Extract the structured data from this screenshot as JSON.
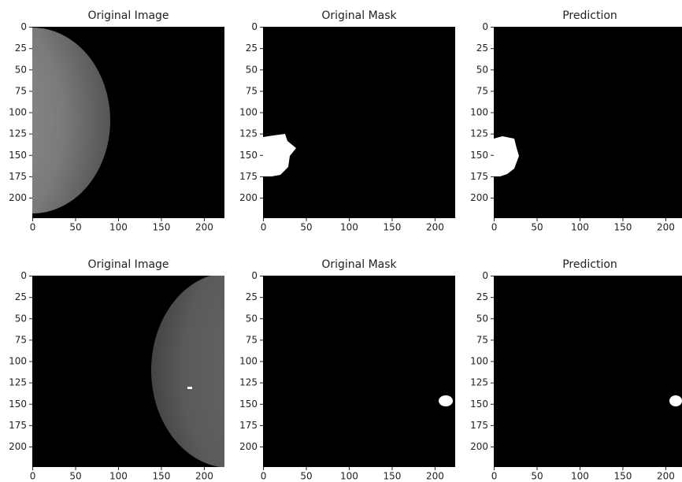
{
  "chart_data": [
    {
      "type": "image",
      "title": "Original Image",
      "xlim": [
        -0.5,
        223.5
      ],
      "ylim": [
        223.5,
        -0.5
      ],
      "xticks": [
        0,
        50,
        100,
        150,
        200
      ],
      "yticks": [
        0,
        25,
        50,
        75,
        100,
        125,
        150,
        175,
        200
      ]
    },
    {
      "type": "image",
      "title": "Original Mask",
      "xlim": [
        -0.5,
        223.5
      ],
      "ylim": [
        223.5,
        -0.5
      ],
      "xticks": [
        0,
        50,
        100,
        150,
        200
      ],
      "yticks": [
        0,
        25,
        50,
        75,
        100,
        125,
        150,
        175,
        200
      ]
    },
    {
      "type": "image",
      "title": "Prediction",
      "xlim": [
        -0.5,
        223.5
      ],
      "ylim": [
        223.5,
        -0.5
      ],
      "xticks": [
        0,
        50,
        100,
        150,
        200
      ],
      "yticks": [
        0,
        25,
        50,
        75,
        100,
        125,
        150,
        175,
        200
      ]
    },
    {
      "type": "image",
      "title": "Original Image",
      "xlim": [
        -0.5,
        223.5
      ],
      "ylim": [
        223.5,
        -0.5
      ],
      "xticks": [
        0,
        50,
        100,
        150,
        200
      ],
      "yticks": [
        0,
        25,
        50,
        75,
        100,
        125,
        150,
        175,
        200
      ]
    },
    {
      "type": "image",
      "title": "Original Mask",
      "xlim": [
        -0.5,
        223.5
      ],
      "ylim": [
        223.5,
        -0.5
      ],
      "xticks": [
        0,
        50,
        100,
        150,
        200
      ],
      "yticks": [
        0,
        25,
        50,
        75,
        100,
        125,
        150,
        175,
        200
      ]
    },
    {
      "type": "image",
      "title": "Prediction",
      "xlim": [
        -0.5,
        223.5
      ],
      "ylim": [
        223.5,
        -0.5
      ],
      "xticks": [
        0,
        50,
        100,
        150,
        200
      ],
      "yticks": [
        0,
        25,
        50,
        75,
        100,
        125,
        150,
        175,
        200
      ]
    }
  ]
}
